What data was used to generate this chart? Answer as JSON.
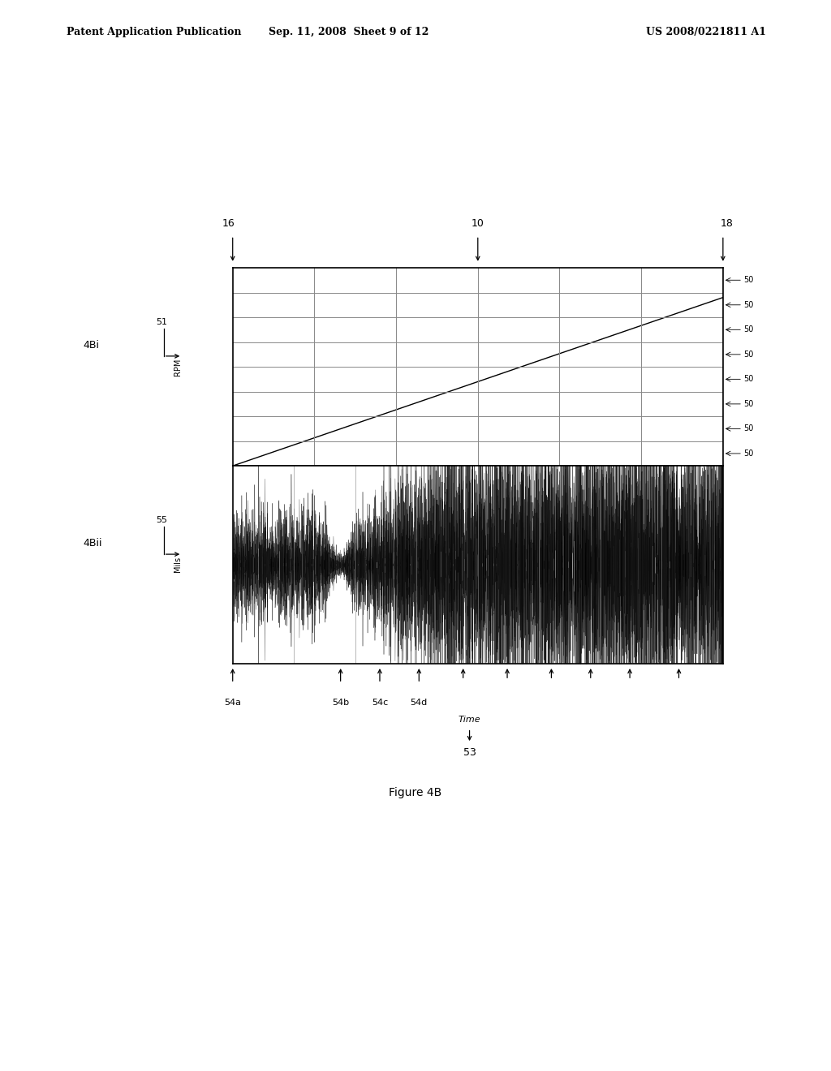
{
  "title": "Figure 4B",
  "header_left": "Patent Application Publication",
  "header_center": "Sep. 11, 2008  Sheet 9 of 12",
  "header_right": "US 2008/0221811 A1",
  "label_4Bi": "4Bi",
  "label_4Bii": "4Bii",
  "label_51": "51",
  "label_rpm": "RPM",
  "label_55": "55",
  "label_mils": "Mils",
  "label_16": "16",
  "label_10": "10",
  "label_18": "18",
  "label_53": "53",
  "label_time": "Time",
  "label_54a": "54a",
  "label_54b": "54b",
  "label_54c": "54c",
  "label_54d": "54d",
  "rpm_right_ticks": [
    "50",
    "50",
    "50",
    "50",
    "50",
    "50",
    "50",
    "50"
  ],
  "background_color": "#ffffff",
  "plot_bg": "#ffffff",
  "grid_color": "#888888",
  "line_color": "#000000",
  "n_grid_cols": 6,
  "n_grid_rows": 8
}
